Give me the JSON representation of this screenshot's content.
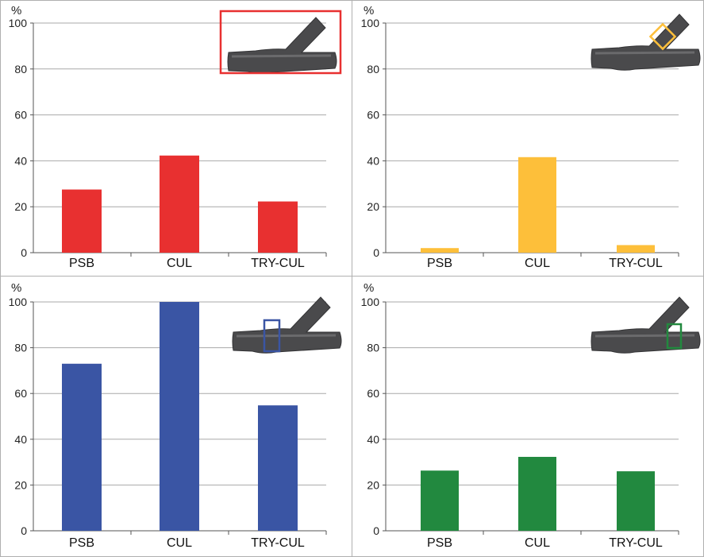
{
  "chart_data": [
    {
      "type": "bar",
      "ylabel": "%",
      "ylim": [
        0,
        100
      ],
      "yticks": [
        0,
        20,
        40,
        60,
        80,
        100
      ],
      "grid": true,
      "categories": [
        "PSB",
        "CUL",
        "TRY-CUL"
      ],
      "values": [
        27.5,
        42.3,
        22.3
      ],
      "color": "#e83030",
      "inset": "pipe-junction with outline around the whole junction"
    },
    {
      "type": "bar",
      "ylabel": "%",
      "ylim": [
        0,
        100
      ],
      "yticks": [
        0,
        20,
        40,
        60,
        80,
        100
      ],
      "grid": true,
      "categories": [
        "PSB",
        "CUL",
        "TRY-CUL"
      ],
      "values": [
        2.0,
        41.6,
        3.3
      ],
      "color": "#fdbf3a",
      "inset": "pipe-junction with outline on the branch pipe"
    },
    {
      "type": "bar",
      "ylabel": "%",
      "ylim": [
        0,
        100
      ],
      "yticks": [
        0,
        20,
        40,
        60,
        80,
        100
      ],
      "grid": true,
      "categories": [
        "PSB",
        "CUL",
        "TRY-CUL"
      ],
      "values": [
        73.0,
        100.0,
        54.8
      ],
      "color": "#3a55a4",
      "inset": "pipe-junction with outline at the junction section"
    },
    {
      "type": "bar",
      "ylabel": "%",
      "ylim": [
        0,
        100
      ],
      "yticks": [
        0,
        20,
        40,
        60,
        80,
        100
      ],
      "grid": true,
      "categories": [
        "PSB",
        "CUL",
        "TRY-CUL"
      ],
      "values": [
        26.3,
        32.3,
        26.0
      ],
      "color": "#22893f",
      "inset": "pipe-junction with outline on the outlet pipe"
    }
  ]
}
